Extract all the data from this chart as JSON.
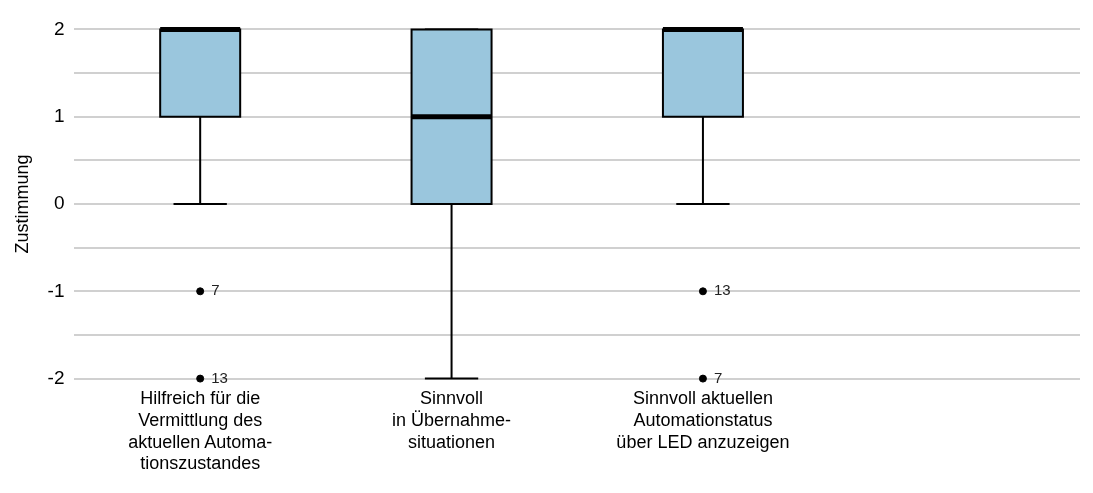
{
  "chart_data": {
    "type": "box",
    "ylabel": "Zustimmung",
    "categories": [
      "Hilfreich für die\nVermittlung des\naktuellen Automa-\ntionszustandes",
      "Sinnvoll\nin Übernahme-\nsituationen",
      "Sinnvoll aktuellen\nAutomationstatus\nüber LED anzuzeigen"
    ],
    "color": "#9ac6dd",
    "boxes": [
      {
        "low": 0,
        "q1": 1,
        "median": 2,
        "q3": 2,
        "high": 2,
        "outliers": [
          -1,
          -2
        ]
      },
      {
        "low": -2,
        "q1": 0,
        "median": 1,
        "q3": 2,
        "high": 2
      },
      {
        "low": 0,
        "q1": 1,
        "median": 2,
        "q3": 2,
        "high": 2,
        "outliers": [
          -1,
          -2
        ]
      }
    ],
    "ylim": [
      -2,
      2
    ],
    "yticks": [
      -2,
      {
        "value": -1.5,
        "label": null
      },
      -1,
      {
        "value": -0.5,
        "label": null
      },
      0,
      {
        "value": 0.5,
        "label": null
      },
      1,
      {
        "value": 1.5,
        "label": null
      },
      2
    ],
    "grid": "y",
    "legend": false,
    "annotations": [
      "7",
      "13",
      "13",
      "7"
    ]
  }
}
